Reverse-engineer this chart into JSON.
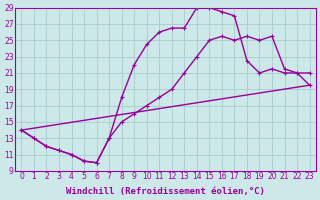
{
  "xlabel": "Windchill (Refroidissement éolien,°C)",
  "bg_color": "#cce8e8",
  "line_color": "#990099",
  "grid_color": "#aacccc",
  "xlim": [
    -0.5,
    23.5
  ],
  "ylim": [
    9,
    29
  ],
  "xticks": [
    0,
    1,
    2,
    3,
    4,
    5,
    6,
    7,
    8,
    9,
    10,
    11,
    12,
    13,
    14,
    15,
    16,
    17,
    18,
    19,
    20,
    21,
    22,
    23
  ],
  "yticks": [
    9,
    11,
    13,
    15,
    17,
    19,
    21,
    23,
    25,
    27,
    29
  ],
  "line1_x": [
    0,
    1,
    2,
    3,
    4,
    5,
    6,
    7,
    8,
    9,
    10,
    11,
    12,
    13,
    14,
    15,
    16,
    17,
    18,
    19,
    20,
    21,
    22,
    23
  ],
  "line1_y": [
    14,
    13,
    12,
    11.5,
    11,
    10.2,
    10,
    13,
    18,
    22,
    24.5,
    26,
    26.5,
    26.5,
    29,
    29,
    28.5,
    28,
    22.5,
    21,
    21.5,
    21,
    21,
    21
  ],
  "line2_x": [
    0,
    1,
    2,
    3,
    4,
    5,
    6,
    7,
    8,
    9,
    10,
    11,
    12,
    13,
    14,
    15,
    16,
    17,
    18,
    19,
    20,
    21,
    22,
    23
  ],
  "line2_y": [
    14,
    13,
    12,
    11.5,
    11,
    10.2,
    10,
    13,
    15,
    16,
    17,
    18,
    19,
    21,
    23,
    25,
    25.5,
    25,
    25.5,
    25,
    25.5,
    21.5,
    21,
    19.5
  ],
  "line3_x": [
    0,
    23
  ],
  "line3_y": [
    14,
    19.5
  ],
  "marker_size": 3.5,
  "linewidth": 1.0,
  "tick_fontsize": 5.5,
  "xlabel_fontsize": 6.5
}
